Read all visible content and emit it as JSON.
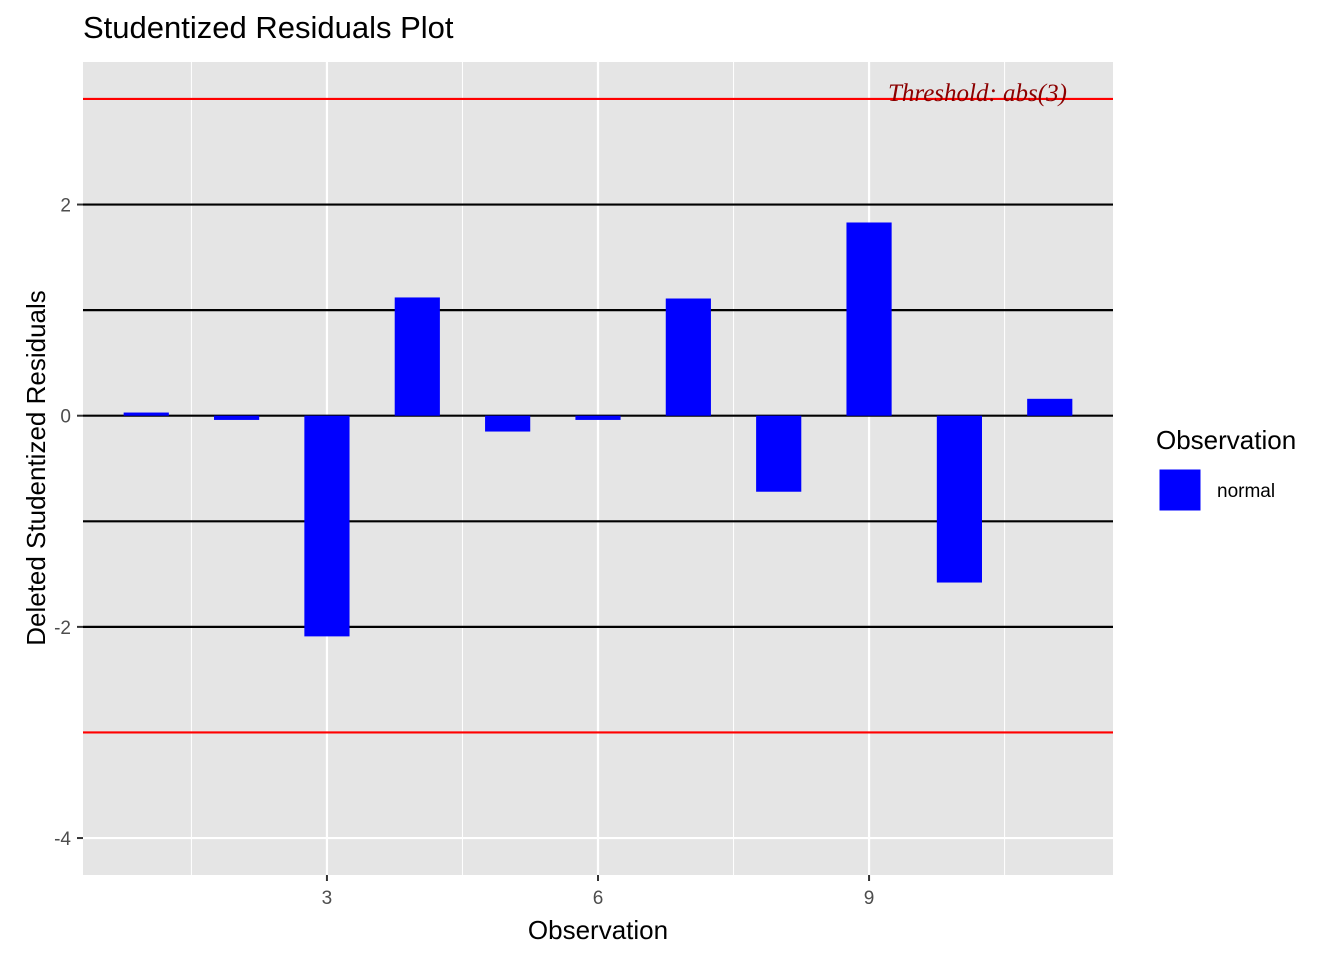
{
  "chart_data": {
    "type": "bar",
    "title": "Studentized Residuals Plot",
    "xlabel": "Observation",
    "ylabel": "Deleted Studentized Residuals",
    "x": [
      1,
      2,
      3,
      4,
      5,
      6,
      7,
      8,
      9,
      10,
      11
    ],
    "values": [
      0.03,
      -0.04,
      -2.09,
      1.12,
      -0.15,
      -0.04,
      1.11,
      -0.72,
      1.83,
      -1.58,
      0.16
    ],
    "xlim": [
      0.3,
      11.7
    ],
    "ylim": [
      -4.35,
      3.35
    ],
    "x_ticks": [
      3,
      6,
      9
    ],
    "x_tick_labels": [
      "3",
      "6",
      "9"
    ],
    "y_ticks": [
      -4,
      -2,
      0,
      2
    ],
    "y_tick_labels": [
      "-4",
      "-2",
      "0",
      "2"
    ],
    "bar_color": "#0000ff",
    "panel_background": "#e5e5e5",
    "grid": true,
    "reference_lines": [
      -2,
      -1,
      0,
      1,
      2
    ],
    "reference_line_color": "#000000",
    "threshold_lines": [
      -3,
      3
    ],
    "threshold_color": "#ff0000",
    "annotation": {
      "text": "Threshold: abs(3)",
      "x": 10.2,
      "y": 3,
      "color": "#8b0000"
    },
    "legend": {
      "title": "Observation",
      "placement": "right",
      "items": [
        {
          "label": "normal",
          "color": "#0000ff"
        }
      ]
    }
  }
}
